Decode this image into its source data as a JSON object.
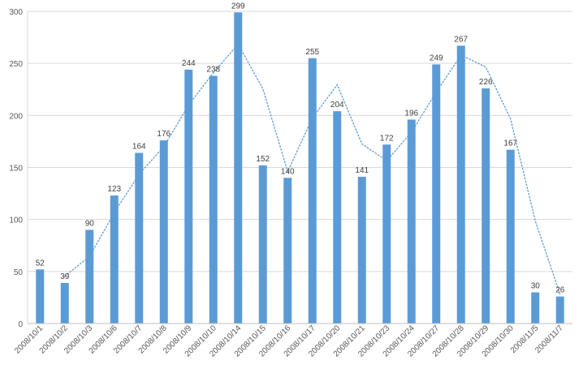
{
  "chart_data": {
    "type": "bar",
    "title": "",
    "xlabel": "",
    "ylabel": "",
    "categories": [
      "2008/10/1",
      "2008/10/2",
      "2008/10/3",
      "2008/10/6",
      "2008/10/7",
      "2008/10/8",
      "2008/10/9",
      "2008/10/10",
      "2008/10/14",
      "2008/10/15",
      "2008/10/16",
      "2008/10/17",
      "2008/10/20",
      "2008/10/21",
      "2008/10/23",
      "2008/10/24",
      "2008/10/27",
      "2008/10/28",
      "2008/10/29",
      "2008/10/30",
      "2008/11/5",
      "2008/11/7"
    ],
    "series": [
      {
        "values": [
          52,
          39,
          90,
          123,
          164,
          176,
          244,
          238,
          299,
          152,
          140,
          255,
          204,
          141,
          172,
          196,
          249,
          267,
          226,
          167,
          30,
          26
        ],
        "color": "#5b9bd5",
        "data_labels": [
          "52",
          "39",
          "90",
          "123",
          "164",
          "176",
          "244",
          "238",
          "299",
          "152",
          "140",
          "255",
          "204",
          "141",
          "172",
          "196",
          "249",
          "267",
          "226",
          "167",
          "30",
          "26"
        ]
      }
    ],
    "trendline": {
      "type": "moving-average",
      "period": 2,
      "style": "dotted",
      "color": "#5b9bd5"
    },
    "ylim": [
      0,
      300
    ],
    "yticks": [
      "0",
      "50",
      "100",
      "150",
      "200",
      "250",
      "300"
    ],
    "grid": true,
    "legend": "none"
  }
}
